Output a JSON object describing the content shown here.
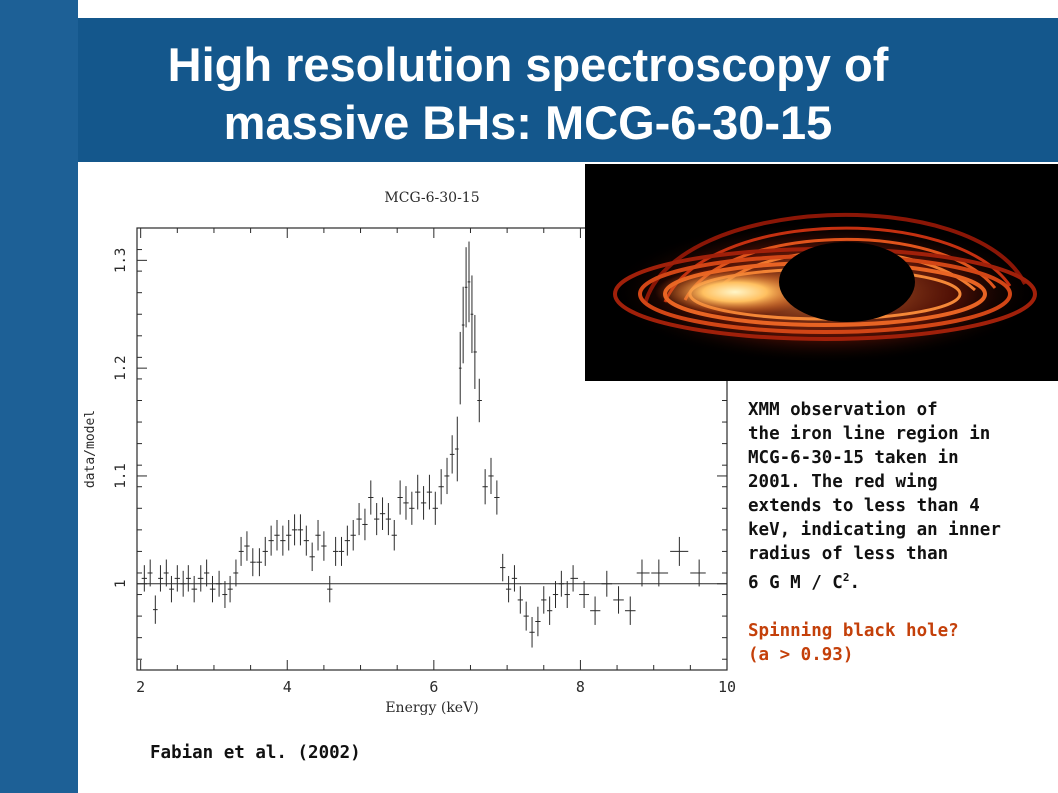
{
  "slide": {
    "title_line1": "High resolution spectroscopy of",
    "title_line2": "massive BHs: MCG-6-30-15",
    "colors": {
      "left_band": "#1d6096",
      "title_band": "#14578c",
      "accent_text": "#c4400a"
    }
  },
  "notes": {
    "line1": "XMM observation of",
    "line2": "the iron line region in",
    "line3": "MCG-6-30-15 taken in",
    "line4": "2001. The red wing",
    "line5": "extends to less than 4",
    "line6": "keV, indicating an inner",
    "line7": "radius of less than",
    "line8_pre": "6 G M / C",
    "line8_sup": "2",
    "line8_post": ".",
    "accent_line1": "Spinning black hole?",
    "accent_line2": "(a > 0.93)"
  },
  "citation": "Fabian et al. (2002)",
  "image": {
    "subject": "accretion-disk-simulation",
    "colors": [
      "#000000",
      "#7a0e00",
      "#e0501a",
      "#ffe7a0"
    ]
  },
  "chart_data": {
    "type": "scatter",
    "title": "MCG-6-30-15",
    "xlabel": "Energy (keV)",
    "ylabel": "data/model",
    "xlim": [
      1.95,
      10
    ],
    "ylim": [
      0.92,
      1.33
    ],
    "xticks": [
      "2",
      "4",
      "6",
      "8",
      "10"
    ],
    "yticks": [
      "1",
      "1.1",
      "1.2",
      "1.3"
    ],
    "reference_line": 1.0,
    "error_bars": true,
    "series": [
      {
        "points": [
          [
            2.05,
            1.005
          ],
          [
            2.13,
            1.01
          ],
          [
            2.2,
            0.976
          ],
          [
            2.27,
            1.005
          ],
          [
            2.35,
            1.01
          ],
          [
            2.42,
            0.995
          ],
          [
            2.5,
            1.005
          ],
          [
            2.58,
            1.0
          ],
          [
            2.65,
            1.005
          ],
          [
            2.73,
            0.995
          ],
          [
            2.82,
            1.005
          ],
          [
            2.9,
            1.01
          ],
          [
            2.98,
            0.995
          ],
          [
            3.07,
            1.0
          ],
          [
            3.15,
            0.99
          ],
          [
            3.22,
            0.995
          ],
          [
            3.3,
            1.01
          ],
          [
            3.37,
            1.03
          ],
          [
            3.45,
            1.035
          ],
          [
            3.53,
            1.02
          ],
          [
            3.62,
            1.02
          ],
          [
            3.7,
            1.03
          ],
          [
            3.78,
            1.04
          ],
          [
            3.86,
            1.045
          ],
          [
            3.94,
            1.04
          ],
          [
            4.02,
            1.045
          ],
          [
            4.1,
            1.05
          ],
          [
            4.18,
            1.05
          ],
          [
            4.26,
            1.04
          ],
          [
            4.34,
            1.025
          ],
          [
            4.42,
            1.045
          ],
          [
            4.5,
            1.035
          ],
          [
            4.58,
            0.995
          ],
          [
            4.66,
            1.03
          ],
          [
            4.74,
            1.03
          ],
          [
            4.82,
            1.04
          ],
          [
            4.9,
            1.045
          ],
          [
            4.98,
            1.06
          ],
          [
            5.06,
            1.055
          ],
          [
            5.14,
            1.08
          ],
          [
            5.22,
            1.06
          ],
          [
            5.3,
            1.065
          ],
          [
            5.38,
            1.06
          ],
          [
            5.46,
            1.045
          ],
          [
            5.54,
            1.08
          ],
          [
            5.62,
            1.075
          ],
          [
            5.7,
            1.07
          ],
          [
            5.78,
            1.085
          ],
          [
            5.86,
            1.075
          ],
          [
            5.94,
            1.085
          ],
          [
            6.02,
            1.07
          ],
          [
            6.1,
            1.09
          ],
          [
            6.18,
            1.1
          ],
          [
            6.25,
            1.12
          ],
          [
            6.32,
            1.125
          ],
          [
            6.36,
            1.2
          ],
          [
            6.4,
            1.24
          ],
          [
            6.44,
            1.275
          ],
          [
            6.48,
            1.28
          ],
          [
            6.52,
            1.25
          ],
          [
            6.56,
            1.215
          ],
          [
            6.62,
            1.17
          ],
          [
            6.7,
            1.09
          ],
          [
            6.78,
            1.1
          ],
          [
            6.86,
            1.08
          ],
          [
            6.94,
            1.015
          ],
          [
            7.02,
            0.995
          ],
          [
            7.1,
            1.005
          ],
          [
            7.18,
            0.985
          ],
          [
            7.26,
            0.97
          ],
          [
            7.34,
            0.955
          ],
          [
            7.42,
            0.965
          ],
          [
            7.5,
            0.985
          ],
          [
            7.58,
            0.975
          ],
          [
            7.66,
            0.99
          ],
          [
            7.74,
            1.0
          ],
          [
            7.82,
            0.99
          ],
          [
            7.9,
            1.005
          ],
          [
            8.05,
            0.99
          ],
          [
            8.2,
            0.975
          ],
          [
            8.36,
            1.0
          ],
          [
            8.52,
            0.985
          ],
          [
            8.68,
            0.975
          ],
          [
            8.84,
            1.01
          ],
          [
            9.07,
            1.01
          ],
          [
            9.35,
            1.03
          ],
          [
            9.62,
            1.01
          ]
        ]
      }
    ]
  }
}
